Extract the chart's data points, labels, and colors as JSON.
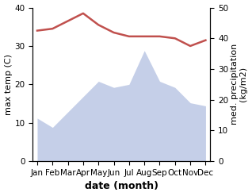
{
  "months": [
    "Jan",
    "Feb",
    "Mar",
    "Apr",
    "May",
    "Jun",
    "Jul",
    "Aug",
    "Sep",
    "Oct",
    "Nov",
    "Dec"
  ],
  "month_positions": [
    0,
    1,
    2,
    3,
    4,
    5,
    6,
    7,
    8,
    9,
    10,
    11
  ],
  "temp": [
    34,
    34.5,
    36.5,
    38.5,
    35.5,
    33.5,
    32.5,
    32.5,
    32.5,
    32,
    30,
    31.5
  ],
  "precip": [
    14,
    11,
    16,
    21,
    26,
    24,
    25,
    36,
    26,
    24,
    19,
    18
  ],
  "temp_color": "#c0504d",
  "precip_fill_color": "#c5cfe8",
  "temp_lw": 1.8,
  "ylim_temp": [
    0,
    40
  ],
  "ylim_precip": [
    0,
    50
  ],
  "ylabel_left": "max temp (C)",
  "ylabel_right": "med. precipitation\n(kg/m2)",
  "xlabel": "date (month)",
  "xlabel_fontsize": 9,
  "ylabel_fontsize": 8,
  "tick_fontsize": 7.5,
  "bg_color": "#ffffff",
  "yticks_left": [
    0,
    10,
    20,
    30,
    40
  ],
  "yticks_right": [
    0,
    10,
    20,
    30,
    40,
    50
  ],
  "figsize": [
    3.18,
    2.47
  ],
  "dpi": 100
}
